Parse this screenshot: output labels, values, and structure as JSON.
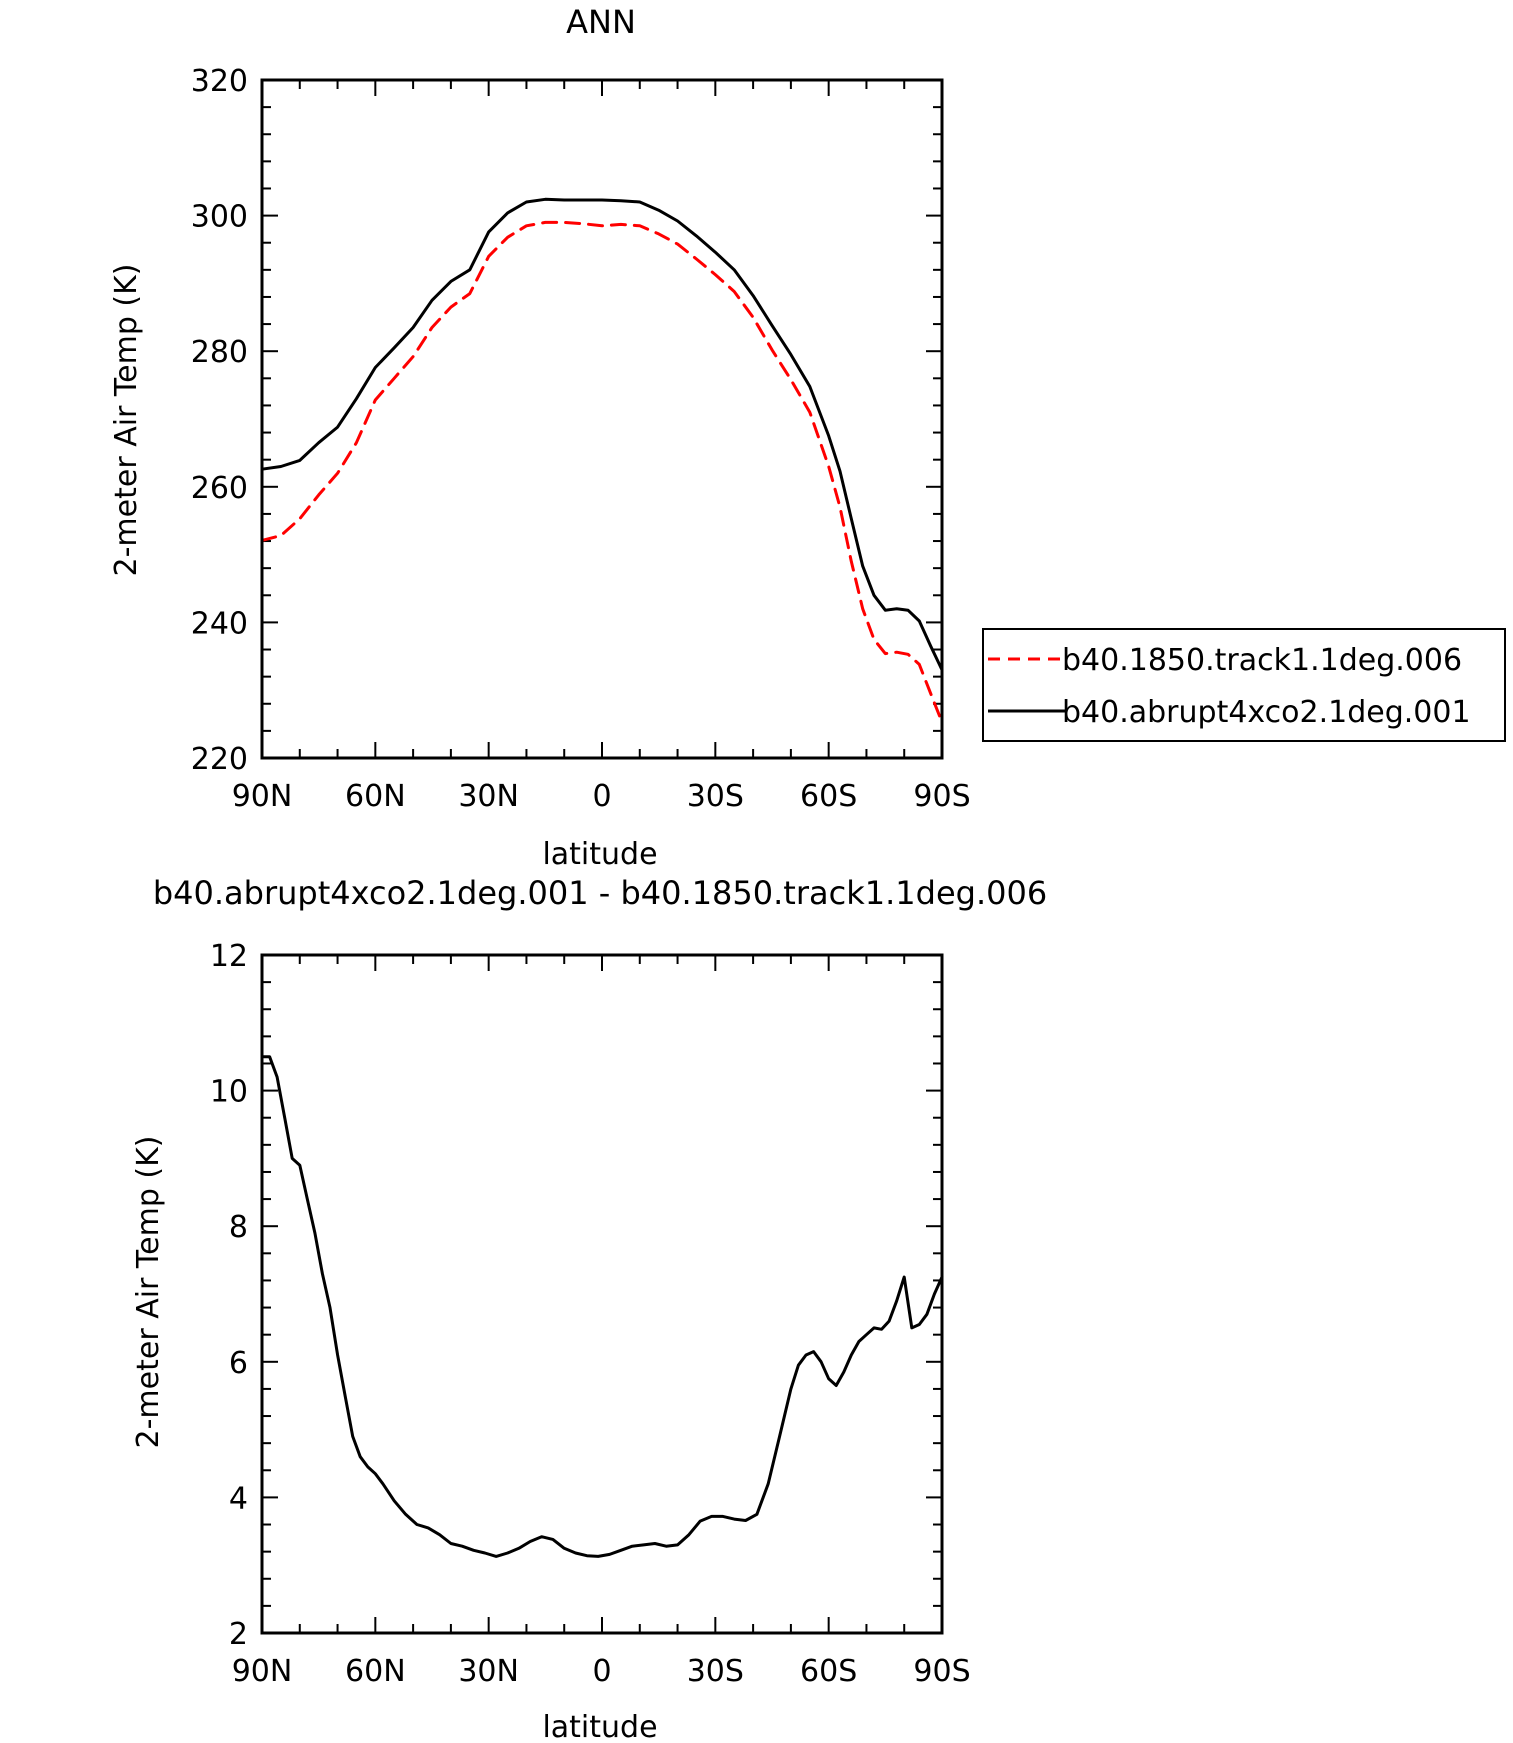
{
  "chart_data": [
    {
      "type": "line",
      "title": "ANN",
      "xlabel": "latitude",
      "ylabel": "2-meter Air Temp (K)",
      "xlim": [
        90,
        -90
      ],
      "ylim": [
        220,
        320
      ],
      "x_ticks": [
        90,
        60,
        30,
        0,
        -30,
        -60,
        -90
      ],
      "x_tick_labels": [
        "90N",
        "60N",
        "30N",
        "0",
        "30S",
        "60S",
        "90S"
      ],
      "y_ticks": [
        220,
        240,
        260,
        280,
        300,
        320
      ],
      "y_tick_labels": [
        "220",
        "240",
        "260",
        "280",
        "300",
        "320"
      ],
      "legend_position": "right",
      "x": [
        90,
        85,
        80,
        75,
        70,
        65,
        60,
        55,
        50,
        45,
        40,
        35,
        30,
        25,
        20,
        15,
        10,
        5,
        0,
        -5,
        -10,
        -15,
        -20,
        -25,
        -30,
        -35,
        -40,
        -45,
        -50,
        -55,
        -60,
        -63,
        -66,
        -69,
        -72,
        -75,
        -78,
        -81,
        -84,
        -87,
        -90
      ],
      "series": [
        {
          "name": "b40.1850.track1.1deg.006",
          "color": "#ff0000",
          "dash": "dashed",
          "values": [
            252.1,
            252.8,
            255.3,
            258.8,
            262.0,
            266.5,
            272.8,
            276.0,
            279.2,
            283.5,
            286.5,
            288.5,
            294.0,
            296.8,
            298.5,
            299.0,
            299.0,
            298.8,
            298.5,
            298.7,
            298.5,
            297.3,
            295.8,
            293.6,
            291.3,
            288.8,
            285.0,
            280.2,
            275.8,
            271.0,
            263.0,
            257.0,
            249.0,
            242.0,
            237.5,
            235.4,
            235.6,
            235.3,
            233.8,
            229.5,
            225.3
          ]
        },
        {
          "name": "b40.abrupt4xco2.1deg.001",
          "color": "#000000",
          "dash": "solid",
          "values": [
            262.6,
            263.0,
            263.9,
            266.5,
            268.8,
            273.0,
            277.6,
            280.5,
            283.5,
            287.5,
            290.3,
            292.0,
            297.6,
            300.4,
            302.0,
            302.4,
            302.3,
            302.3,
            302.3,
            302.2,
            302.0,
            300.8,
            299.2,
            297.0,
            294.6,
            292.0,
            288.2,
            283.8,
            279.5,
            274.8,
            267.5,
            262.3,
            255.3,
            248.3,
            244.0,
            241.8,
            242.0,
            241.8,
            240.2,
            236.5,
            233.0
          ]
        }
      ]
    },
    {
      "type": "line",
      "title": "b40.abrupt4xco2.1deg.001 - b40.1850.track1.1deg.006",
      "xlabel": "latitude",
      "ylabel": "2-meter Air Temp (K)",
      "xlim": [
        90,
        -90
      ],
      "ylim": [
        2,
        12
      ],
      "x_ticks": [
        90,
        60,
        30,
        0,
        -30,
        -60,
        -90
      ],
      "x_tick_labels": [
        "90N",
        "60N",
        "30N",
        "0",
        "30S",
        "60S",
        "90S"
      ],
      "y_ticks": [
        2,
        4,
        6,
        8,
        10,
        12
      ],
      "y_tick_labels": [
        "2",
        "4",
        "6",
        "8",
        "10",
        "12"
      ],
      "x": [
        90,
        88,
        86,
        84,
        82,
        80,
        78,
        76,
        74,
        72,
        70,
        68,
        66,
        64,
        62,
        60,
        58,
        55,
        52,
        49,
        46,
        43,
        40,
        37,
        34,
        31,
        28,
        25,
        22,
        19,
        16,
        13,
        10,
        7,
        4,
        1,
        -2,
        -5,
        -8,
        -11,
        -14,
        -17,
        -20,
        -23,
        -26,
        -29,
        -32,
        -35,
        -38,
        -41,
        -44,
        -47,
        -50,
        -52,
        -54,
        -56,
        -58,
        -60,
        -62,
        -64,
        -66,
        -68,
        -70,
        -72,
        -74,
        -76,
        -78,
        -80,
        -82,
        -84,
        -86,
        -88,
        -90
      ],
      "series": [
        {
          "name": "",
          "color": "#000000",
          "dash": "solid",
          "values": [
            10.5,
            10.5,
            10.2,
            9.6,
            9.0,
            8.9,
            8.4,
            7.9,
            7.3,
            6.8,
            6.1,
            5.5,
            4.9,
            4.6,
            4.45,
            4.35,
            4.2,
            3.95,
            3.75,
            3.6,
            3.55,
            3.45,
            3.32,
            3.28,
            3.22,
            3.18,
            3.13,
            3.18,
            3.25,
            3.35,
            3.42,
            3.38,
            3.25,
            3.18,
            3.14,
            3.13,
            3.16,
            3.22,
            3.28,
            3.3,
            3.32,
            3.28,
            3.3,
            3.45,
            3.65,
            3.72,
            3.72,
            3.68,
            3.66,
            3.75,
            4.2,
            4.9,
            5.6,
            5.95,
            6.1,
            6.15,
            6.0,
            5.75,
            5.65,
            5.85,
            6.1,
            6.3,
            6.4,
            6.5,
            6.48,
            6.6,
            6.9,
            7.25,
            6.5,
            6.55,
            6.7,
            7.0,
            7.25
          ]
        }
      ]
    }
  ]
}
